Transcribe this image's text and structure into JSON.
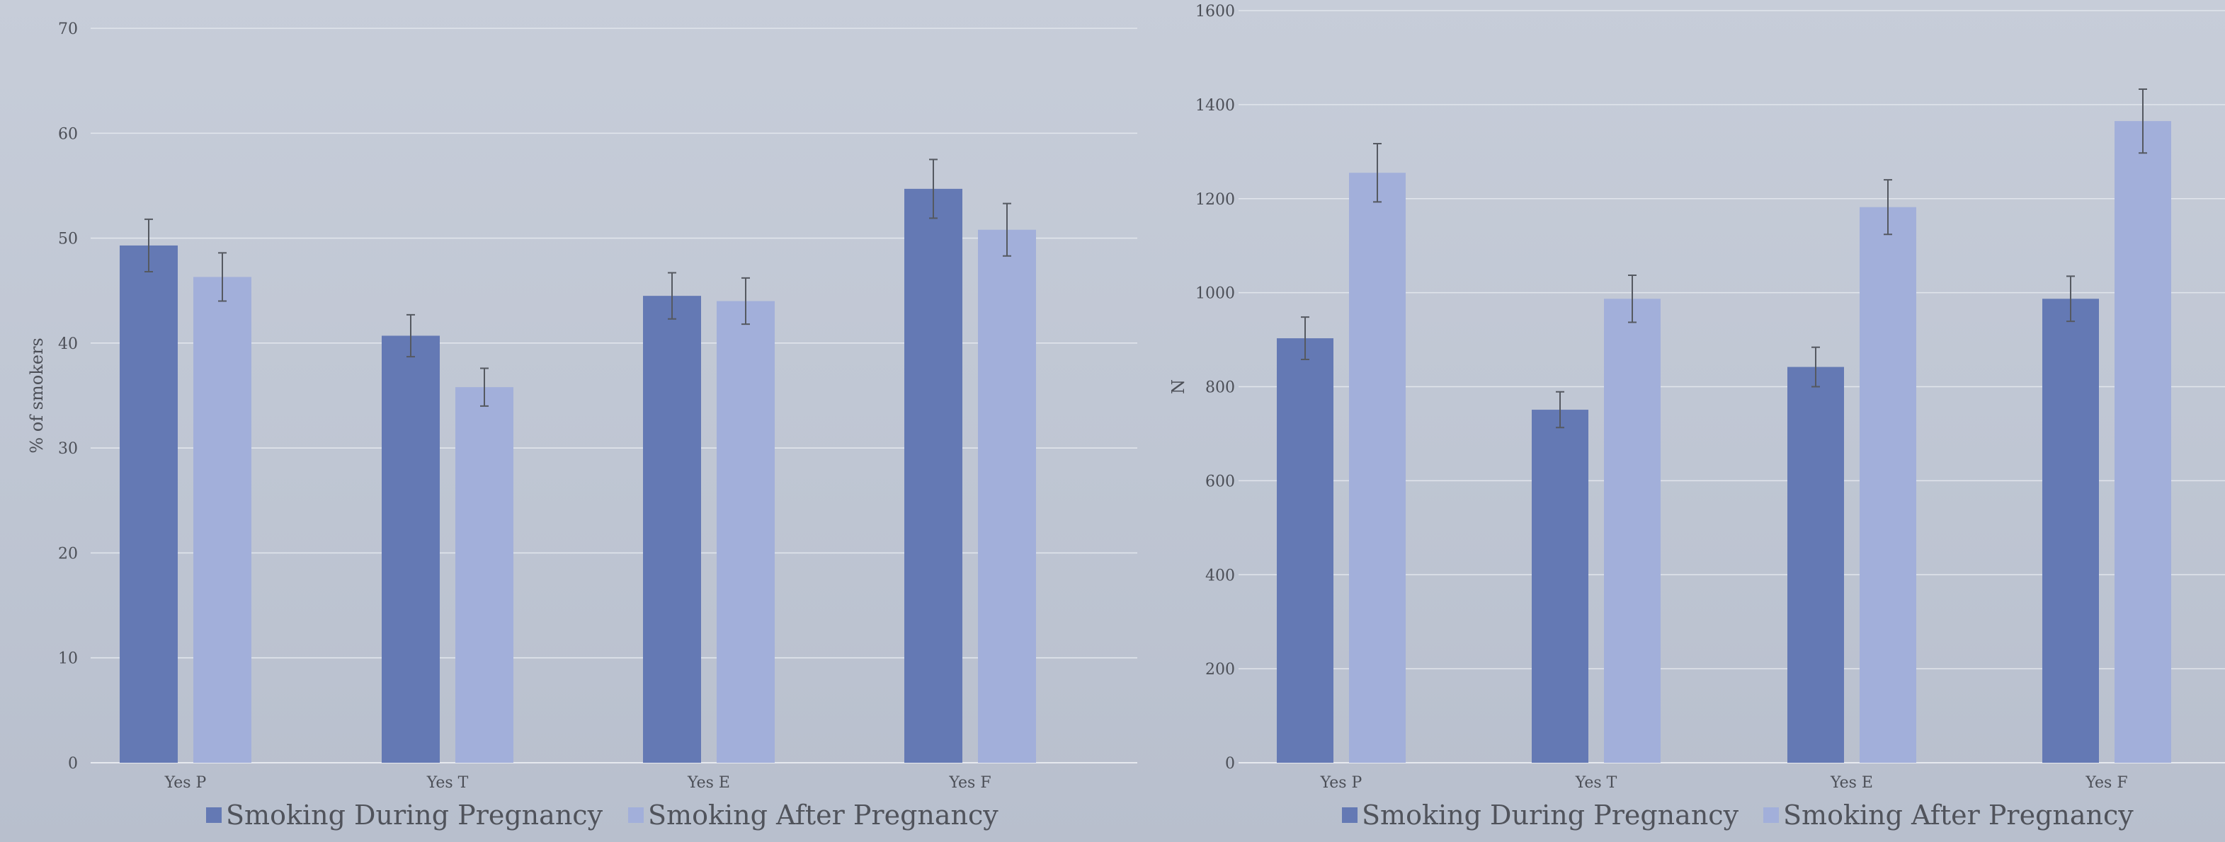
{
  "colors": {
    "during": "#6479b4",
    "after": "#a2afda"
  },
  "chart_data": [
    {
      "type": "bar",
      "title": "",
      "xlabel": "",
      "ylabel": "% of smokers",
      "ylim": [
        0,
        70
      ],
      "yticks": [
        "0",
        "10",
        "20",
        "30",
        "40",
        "50",
        "60",
        "70"
      ],
      "categories": [
        "Yes P",
        "Yes T",
        "Yes E",
        "Yes F"
      ],
      "series": [
        {
          "name": "Smoking During Pregnancy",
          "values": [
            49.3,
            40.7,
            44.5,
            54.7
          ],
          "error": [
            2.5,
            2.0,
            2.2,
            2.8
          ]
        },
        {
          "name": "Smoking After Pregnancy",
          "values": [
            46.3,
            35.8,
            44.0,
            50.8
          ],
          "error": [
            2.3,
            1.8,
            2.2,
            2.5
          ]
        }
      ],
      "grid": true,
      "legend": "bottom"
    },
    {
      "type": "bar",
      "title": "",
      "xlabel": "",
      "ylabel": "N",
      "ylim": [
        0,
        1600
      ],
      "yticks": [
        "0",
        "200",
        "400",
        "600",
        "800",
        "1000",
        "1200",
        "1400",
        "1600"
      ],
      "categories": [
        "Yes P",
        "Yes T",
        "Yes E",
        "Yes F"
      ],
      "series": [
        {
          "name": "Smoking During Pregnancy",
          "values": [
            903,
            751,
            842,
            987
          ],
          "error": [
            45,
            38,
            42,
            48
          ]
        },
        {
          "name": "Smoking After Pregnancy",
          "values": [
            1255,
            987,
            1182,
            1365
          ],
          "error": [
            62,
            50,
            58,
            68
          ]
        }
      ],
      "grid": true,
      "legend": "bottom"
    }
  ]
}
